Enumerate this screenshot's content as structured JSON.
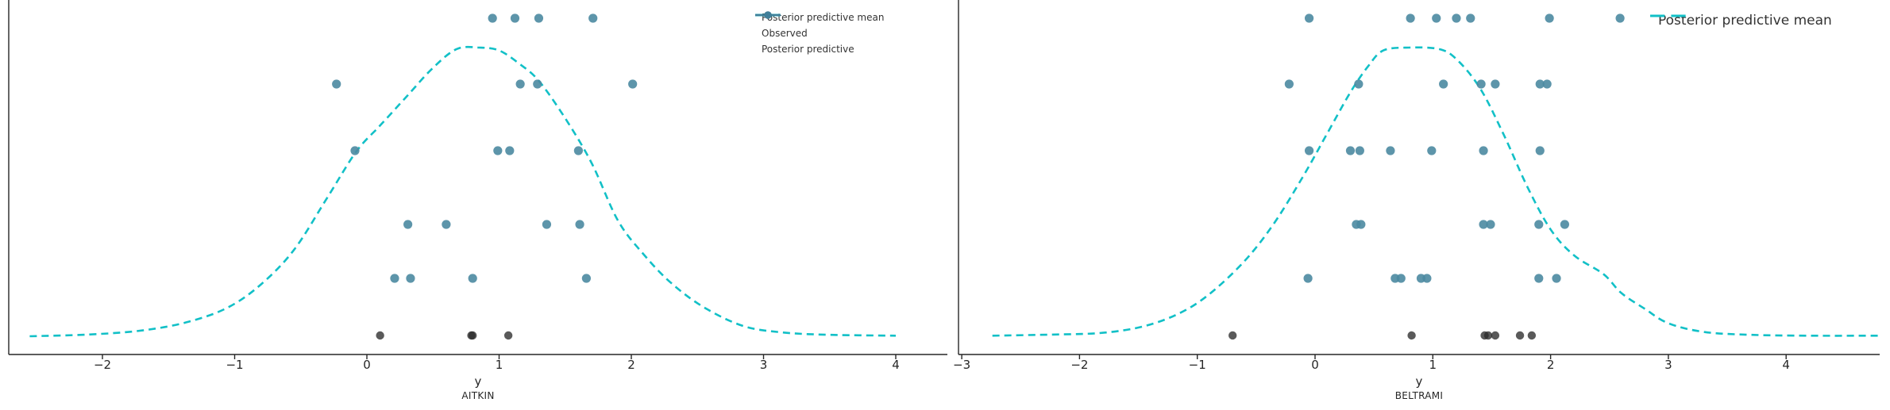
{
  "figure": {
    "background": "#ffffff"
  },
  "colors": {
    "ppc_mean_line": "#12c0c7",
    "posterior_predictive_dot": "#4b89a1",
    "observed_dot": "#2b2b2b",
    "axis": "#262626",
    "legend_text": "#333333"
  },
  "chart_data": [
    {
      "type": "scatter",
      "title": "AITKIN",
      "xlabel": "y",
      "xlim": [
        -2.71,
        4.39
      ],
      "xticks": [
        -2,
        -1,
        0,
        1,
        2,
        3,
        4
      ],
      "xtick_labels": [
        "−2",
        "−1",
        "0",
        "1",
        "2",
        "3",
        "4"
      ],
      "grid": false,
      "legend_position": "upper right inside",
      "legend": [
        {
          "label": "Posterior predictive mean",
          "marker": "dashed-line",
          "color": "#12c0c7"
        },
        {
          "label": "Observed",
          "marker": "dot",
          "color": "#2b2b2b"
        },
        {
          "label": "Posterior predictive",
          "marker": "line-dot",
          "color": "#417f99"
        }
      ],
      "pp_rows": [
        [
          0.95,
          1.12,
          1.3,
          1.71
        ],
        [
          -0.23,
          1.16,
          1.29,
          2.01
        ],
        [
          -0.09,
          0.99,
          1.08,
          1.6
        ],
        [
          0.31,
          0.6,
          1.36,
          1.61
        ],
        [
          0.21,
          0.33,
          0.8,
          1.66
        ]
      ],
      "observed": [
        0.1,
        0.79,
        0.8,
        1.07
      ],
      "ppc_mean_curve": [
        [
          -2.55,
          0.0
        ],
        [
          -2.1,
          0.006
        ],
        [
          -1.7,
          0.02
        ],
        [
          -1.35,
          0.05
        ],
        [
          -1.05,
          0.1
        ],
        [
          -0.8,
          0.18
        ],
        [
          -0.55,
          0.3
        ],
        [
          -0.3,
          0.48
        ],
        [
          -0.08,
          0.64
        ],
        [
          0.1,
          0.73
        ],
        [
          0.3,
          0.83
        ],
        [
          0.5,
          0.93
        ],
        [
          0.68,
          0.995
        ],
        [
          0.85,
          1.0
        ],
        [
          1.0,
          0.99
        ],
        [
          1.15,
          0.945
        ],
        [
          1.3,
          0.885
        ],
        [
          1.5,
          0.755
        ],
        [
          1.7,
          0.6
        ],
        [
          1.9,
          0.4
        ],
        [
          2.1,
          0.28
        ],
        [
          2.3,
          0.185
        ],
        [
          2.55,
          0.1
        ],
        [
          2.85,
          0.035
        ],
        [
          3.15,
          0.013
        ],
        [
          3.5,
          0.005
        ],
        [
          4.0,
          0.002
        ]
      ]
    },
    {
      "type": "scatter",
      "title": "BELTRAMI",
      "xlabel": "y",
      "xlim": [
        -3.03,
        4.81
      ],
      "xticks": [
        -3,
        -2,
        -1,
        0,
        1,
        2,
        3,
        4
      ],
      "xtick_labels": [
        "−3",
        "−2",
        "−1",
        "0",
        "1",
        "2",
        "3",
        "4"
      ],
      "grid": false,
      "legend_position": "upper right outside",
      "legend": [
        {
          "label": "Posterior predictive mean",
          "marker": "dashed-line",
          "color": "#12c0c7"
        }
      ],
      "pp_rows": [
        [
          -0.05,
          0.81,
          1.03,
          1.2,
          1.32,
          1.99,
          2.59
        ],
        [
          -0.22,
          0.37,
          1.09,
          1.41,
          1.53,
          1.91,
          1.97
        ],
        [
          -0.05,
          0.3,
          0.38,
          0.64,
          0.99,
          1.43,
          1.91
        ],
        [
          0.35,
          0.39,
          1.43,
          1.49,
          1.9,
          2.12
        ],
        [
          -0.06,
          0.68,
          0.73,
          0.9,
          0.95,
          1.9,
          2.05
        ]
      ],
      "observed": [
        -0.7,
        0.82,
        1.44,
        1.47,
        1.53,
        1.74,
        1.84
      ],
      "ppc_mean_curve": [
        [
          -2.74,
          0.002
        ],
        [
          -2.2,
          0.006
        ],
        [
          -1.8,
          0.012
        ],
        [
          -1.45,
          0.035
        ],
        [
          -1.15,
          0.08
        ],
        [
          -0.9,
          0.145
        ],
        [
          -0.6,
          0.26
        ],
        [
          -0.35,
          0.39
        ],
        [
          -0.1,
          0.555
        ],
        [
          0.1,
          0.7
        ],
        [
          0.3,
          0.845
        ],
        [
          0.45,
          0.935
        ],
        [
          0.58,
          0.99
        ],
        [
          0.8,
          1.0
        ],
        [
          1.05,
          0.995
        ],
        [
          1.2,
          0.96
        ],
        [
          1.4,
          0.86
        ],
        [
          1.6,
          0.7
        ],
        [
          1.8,
          0.52
        ],
        [
          2.0,
          0.37
        ],
        [
          2.2,
          0.28
        ],
        [
          2.45,
          0.215
        ],
        [
          2.6,
          0.15
        ],
        [
          2.8,
          0.095
        ],
        [
          3.0,
          0.045
        ],
        [
          3.3,
          0.015
        ],
        [
          3.7,
          0.005
        ],
        [
          4.2,
          0.002
        ],
        [
          4.78,
          0.002
        ]
      ]
    }
  ]
}
